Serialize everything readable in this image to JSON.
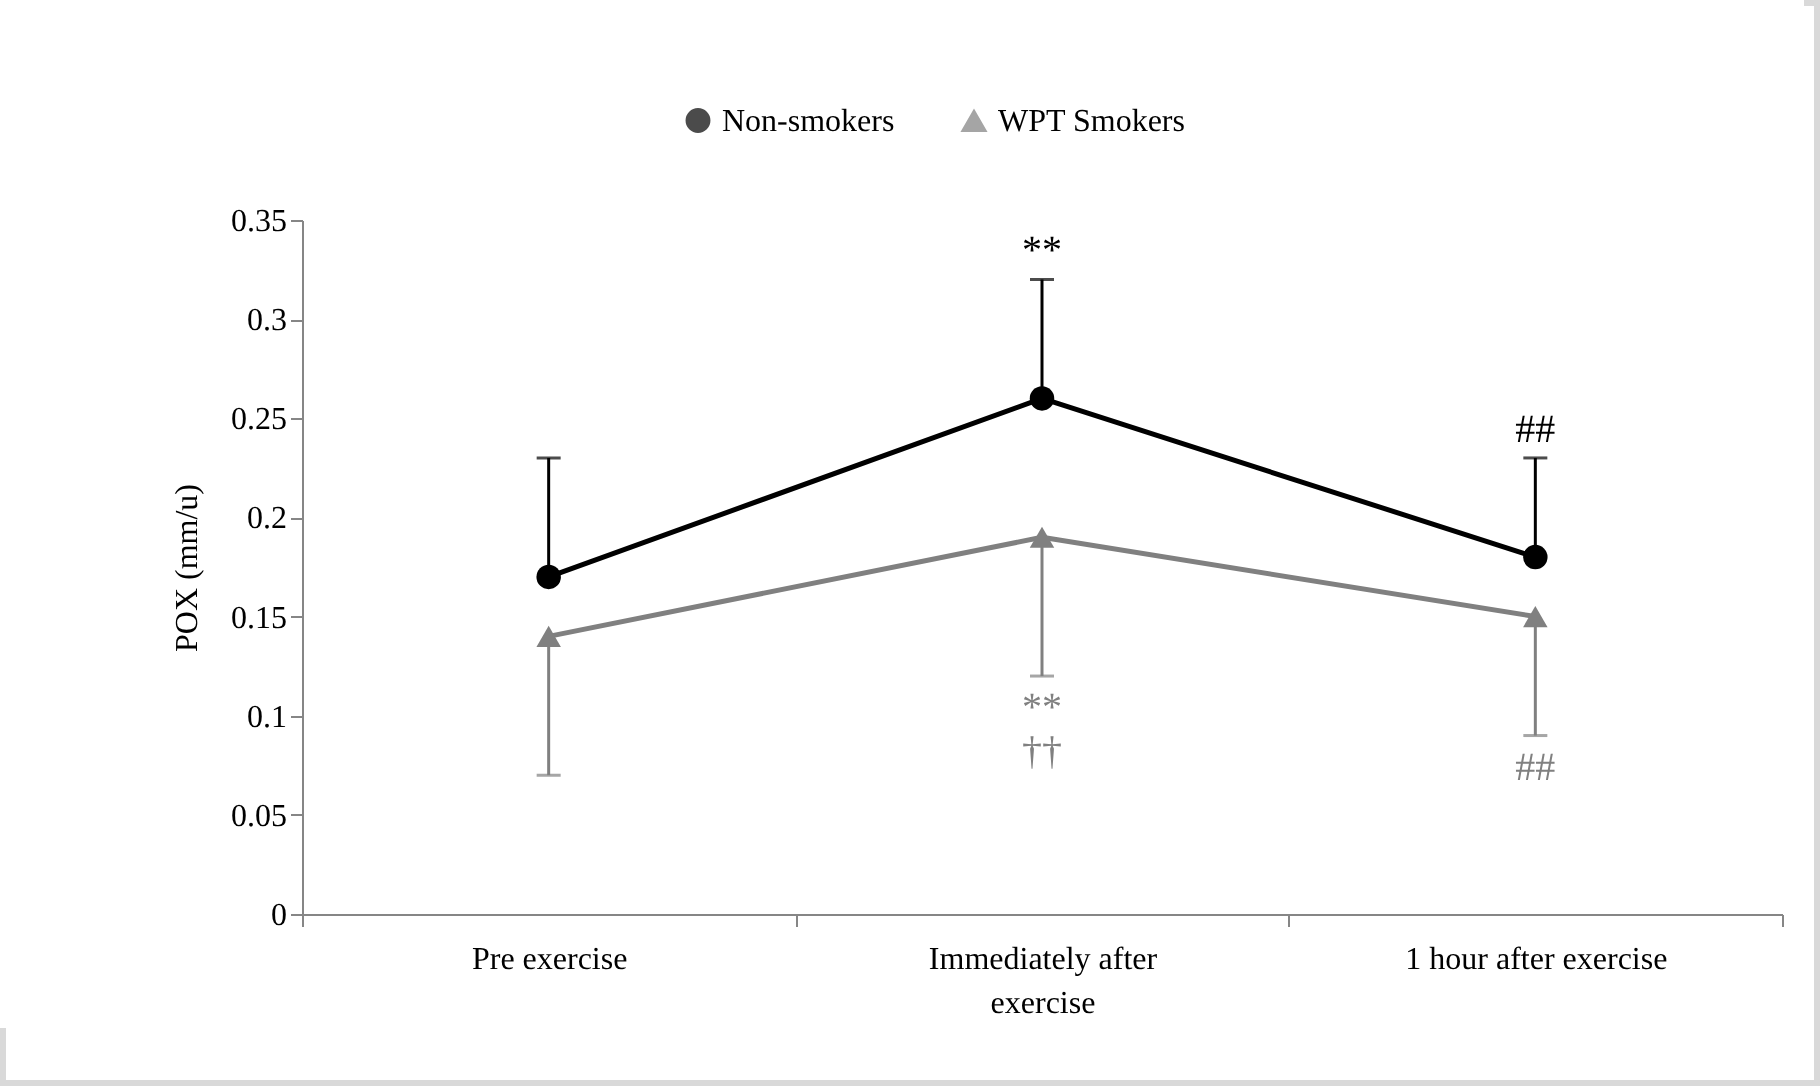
{
  "chart_data": {
    "type": "line",
    "ylabel": "POX (mm/u)",
    "categories": [
      "Pre exercise",
      "Immediately after exercise",
      "1 hour after exercise"
    ],
    "series": [
      {
        "name": "Non-smokers",
        "color": "#000000",
        "marker": "circle",
        "values": [
          0.17,
          0.26,
          0.18
        ],
        "errors": [
          [
            0.17,
            0.23
          ],
          [
            0.26,
            0.32
          ],
          [
            0.18,
            0.23
          ]
        ]
      },
      {
        "name": "WPT Smokers",
        "color": "#808080",
        "marker": "triangle",
        "values": [
          0.14,
          0.19,
          0.15
        ],
        "errors": [
          [
            0.07,
            0.14
          ],
          [
            0.12,
            0.19
          ],
          [
            0.09,
            0.15
          ]
        ]
      }
    ],
    "ylim": [
      0,
      0.35
    ],
    "yticks": [
      0,
      0.05,
      0.1,
      0.15,
      0.2,
      0.25,
      0.3,
      0.35
    ],
    "legend": "top",
    "annotations": [
      {
        "text": "**",
        "x": "Immediately after exercise",
        "y": 0.32
      },
      {
        "text": "##",
        "x": "1 hour after exercise",
        "y": 0.23
      },
      {
        "text": "**",
        "x": "Immediately after exercise",
        "y": 0.12
      },
      {
        "text": "††",
        "x": "Immediately after exercise",
        "y": 0.12
      },
      {
        "text": "##",
        "x": "1 hour after exercise",
        "y": 0.09
      }
    ]
  }
}
